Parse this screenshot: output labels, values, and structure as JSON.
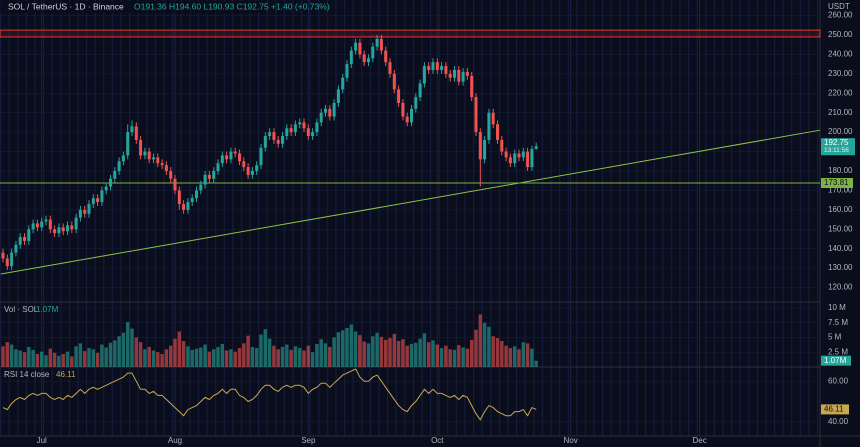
{
  "chart_data": [
    {
      "type": "candlestick",
      "title": "SOL / TetherUS · 1D · Binance",
      "subtitle": "O191.36 H194.60 L190.93 C192.75 +1.40 (+0.73%)",
      "currency": "USDT",
      "countdown": "13:11:56",
      "up_color": "#26a69a",
      "down_color": "#ef5350",
      "xlim": [
        -0.7,
        190
      ],
      "xticks": [
        {
          "value": 9,
          "label": "Jul"
        },
        {
          "value": 40,
          "label": "Aug"
        },
        {
          "value": 71,
          "label": "Sep"
        },
        {
          "value": 101,
          "label": "Oct"
        },
        {
          "value": 132,
          "label": "Nov"
        },
        {
          "value": 162,
          "label": "Dec"
        }
      ],
      "ylim": [
        113.6,
        268
      ],
      "yticks": [
        {
          "value": 120,
          "label": "120.00"
        },
        {
          "value": 130,
          "label": "130.00"
        },
        {
          "value": 140,
          "label": "140.00"
        },
        {
          "value": 150,
          "label": "150.00"
        },
        {
          "value": 160,
          "label": "160.00"
        },
        {
          "value": 170,
          "label": "170.00"
        },
        {
          "value": 180,
          "label": "180.00"
        },
        {
          "value": 190,
          "label": "190.00"
        },
        {
          "value": 200,
          "label": "200.00"
        },
        {
          "value": 210,
          "label": "210.00"
        },
        {
          "value": 220,
          "label": "220.00"
        },
        {
          "value": 230,
          "label": "230.00"
        },
        {
          "value": 240,
          "label": "240.00"
        },
        {
          "value": 250,
          "label": "250.00"
        },
        {
          "value": 260,
          "label": "260.00"
        }
      ],
      "series": {
        "open": [
          138,
          135,
          131,
          138,
          142,
          146,
          144,
          150,
          153,
          151,
          154,
          155,
          150,
          148,
          151,
          149,
          152,
          150,
          156,
          160,
          158,
          163,
          166,
          164,
          170,
          172,
          176,
          180,
          185,
          188,
          200,
          203,
          196,
          188,
          190,
          186,
          187,
          184,
          183,
          180,
          176,
          170,
          163,
          160,
          164,
          166,
          170,
          173,
          178,
          176,
          180,
          184,
          188,
          186,
          190,
          189,
          185,
          182,
          178,
          180,
          183,
          192,
          198,
          200,
          196,
          194,
          198,
          202,
          200,
          204,
          205,
          202,
          198,
          200,
          205,
          210,
          212,
          208,
          215,
          222,
          228,
          235,
          242,
          246,
          240,
          236,
          238,
          244,
          248,
          242,
          236,
          230,
          222,
          215,
          208,
          205,
          212,
          218,
          225,
          234,
          232,
          236,
          232,
          234,
          230,
          228,
          232,
          226,
          231,
          229,
          218,
          200,
          186,
          196,
          210,
          204,
          196,
          190,
          187,
          184,
          189,
          187,
          190,
          182,
          191.36
        ],
        "high": [
          140,
          137,
          140,
          144,
          148,
          148,
          152,
          155,
          155,
          156,
          157,
          157,
          152,
          153,
          153,
          154,
          154,
          158,
          162,
          162,
          165,
          168,
          168,
          172,
          174,
          178,
          182,
          187,
          190,
          204,
          206,
          205,
          198,
          192,
          192,
          189,
          189,
          186,
          185,
          182,
          178,
          172,
          165,
          166,
          168,
          172,
          175,
          180,
          180,
          182,
          186,
          190,
          190,
          192,
          192,
          191,
          187,
          184,
          182,
          185,
          194,
          200,
          202,
          202,
          198,
          200,
          204,
          204,
          206,
          207,
          207,
          204,
          202,
          207,
          212,
          214,
          214,
          217,
          224,
          230,
          237,
          244,
          248,
          248,
          242,
          240,
          246,
          250,
          250,
          244,
          238,
          232,
          224,
          217,
          210,
          214,
          220,
          227,
          236,
          236,
          238,
          238,
          236,
          236,
          232,
          234,
          234,
          233,
          233,
          231,
          220,
          202,
          198,
          212,
          212,
          206,
          198,
          192,
          189,
          191,
          191,
          192,
          192,
          193,
          194.6
        ],
        "low": [
          133,
          129,
          129,
          136,
          140,
          142,
          142,
          148,
          149,
          149,
          152,
          148,
          146,
          146,
          147,
          147,
          148,
          148,
          154,
          156,
          156,
          161,
          162,
          162,
          168,
          170,
          174,
          178,
          183,
          186,
          198,
          194,
          186,
          186,
          184,
          184,
          182,
          181,
          178,
          174,
          168,
          160,
          158,
          158,
          162,
          164,
          168,
          171,
          174,
          174,
          178,
          182,
          184,
          184,
          187,
          183,
          180,
          176,
          176,
          178,
          181,
          190,
          196,
          194,
          192,
          192,
          196,
          198,
          198,
          202,
          200,
          196,
          196,
          198,
          203,
          208,
          206,
          206,
          213,
          220,
          226,
          233,
          240,
          238,
          234,
          234,
          236,
          242,
          240,
          234,
          228,
          220,
          213,
          206,
          203,
          203,
          210,
          216,
          223,
          230,
          230,
          230,
          230,
          228,
          226,
          226,
          224,
          224,
          227,
          216,
          198,
          172,
          184,
          194,
          202,
          194,
          188,
          185,
          182,
          182,
          185,
          185,
          180,
          180,
          190.93
        ],
        "close": [
          135,
          131,
          138,
          142,
          146,
          144,
          150,
          153,
          151,
          154,
          155,
          150,
          148,
          151,
          149,
          152,
          150,
          156,
          160,
          158,
          163,
          166,
          164,
          170,
          172,
          176,
          180,
          185,
          188,
          200,
          203,
          196,
          188,
          190,
          186,
          187,
          184,
          183,
          180,
          176,
          170,
          163,
          160,
          164,
          166,
          170,
          173,
          178,
          176,
          180,
          184,
          188,
          186,
          190,
          189,
          185,
          182,
          178,
          180,
          183,
          192,
          198,
          200,
          196,
          194,
          198,
          202,
          200,
          204,
          205,
          202,
          198,
          200,
          205,
          210,
          212,
          208,
          215,
          222,
          228,
          235,
          242,
          246,
          240,
          236,
          238,
          244,
          248,
          242,
          236,
          230,
          222,
          215,
          208,
          205,
          212,
          218,
          225,
          234,
          232,
          236,
          232,
          234,
          230,
          228,
          232,
          226,
          231,
          229,
          218,
          200,
          186,
          196,
          210,
          204,
          196,
          190,
          187,
          184,
          189,
          187,
          190,
          182,
          191.35,
          192.75
        ]
      },
      "zone": {
        "from": 249,
        "to": 252.5,
        "color": "#e53935"
      },
      "hlines": [
        {
          "value": 173.81,
          "label": "173.81",
          "color": "#7cb342"
        }
      ],
      "trendline": {
        "x": [
          -0.5,
          190
        ],
        "y": [
          127,
          201
        ],
        "color": "#8bc34a"
      }
    },
    {
      "type": "bar",
      "title": "Vol · SOL",
      "last_value_label": "1.07M",
      "ylim": [
        0,
        11
      ],
      "yticks": [
        {
          "value": 2.5,
          "label": "2.5 M"
        },
        {
          "value": 5,
          "label": "5 M"
        },
        {
          "value": 7.5,
          "label": "7.5 M"
        },
        {
          "value": 10,
          "label": "10 M"
        }
      ],
      "values": [
        3.5,
        4.2,
        3.8,
        3.0,
        2.8,
        2.5,
        3.4,
        2.9,
        2.2,
        2.6,
        2.0,
        3.1,
        2.4,
        1.9,
        2.2,
        2.6,
        1.8,
        3.5,
        4.0,
        2.7,
        3.2,
        3.0,
        2.4,
        3.8,
        3.3,
        4.1,
        4.5,
        5.2,
        5.8,
        7.6,
        6.5,
        5.0,
        4.2,
        3.0,
        3.4,
        2.8,
        2.5,
        2.2,
        3.0,
        3.6,
        4.8,
        6.0,
        4.4,
        3.5,
        2.9,
        3.1,
        3.3,
        3.8,
        2.6,
        3.0,
        3.4,
        3.9,
        2.8,
        3.0,
        2.6,
        3.2,
        4.0,
        5.3,
        3.4,
        3.2,
        5.5,
        6.4,
        4.8,
        3.6,
        3.0,
        3.4,
        3.8,
        2.9,
        3.5,
        3.2,
        2.8,
        3.6,
        2.5,
        3.9,
        4.7,
        4.0,
        3.4,
        5.0,
        5.9,
        6.2,
        6.6,
        7.2,
        6.0,
        5.4,
        4.3,
        4.0,
        5.2,
        5.8,
        5.1,
        4.6,
        4.9,
        5.6,
        4.4,
        4.7,
        3.6,
        3.9,
        4.1,
        4.8,
        5.7,
        4.2,
        4.5,
        3.8,
        3.2,
        3.6,
        3.0,
        2.9,
        3.7,
        3.3,
        3.1,
        4.6,
        6.3,
        8.9,
        7.5,
        6.8,
        5.2,
        4.9,
        4.4,
        3.6,
        3.2,
        3.5,
        3.0,
        4.2,
        4.0,
        3.1,
        1.07
      ]
    },
    {
      "type": "line",
      "title": "RSI 14 close",
      "color": "#c9a84c",
      "ylim": [
        33,
        67
      ],
      "yticks": [
        {
          "value": 40,
          "label": "40.00"
        },
        {
          "value": 60,
          "label": "60.00"
        }
      ],
      "values": [
        47,
        46,
        49,
        51,
        52,
        51,
        53,
        54,
        53,
        54,
        54,
        52,
        51,
        52,
        51,
        53,
        52,
        54,
        56,
        54,
        56,
        57,
        56,
        57,
        58,
        59,
        60,
        61,
        62,
        64,
        64,
        60,
        56,
        56,
        54,
        55,
        53,
        53,
        51,
        49,
        47,
        45,
        43,
        46,
        47,
        48,
        50,
        52,
        51,
        53,
        54,
        56,
        54,
        56,
        56,
        53,
        52,
        50,
        51,
        53,
        56,
        58,
        58,
        56,
        55,
        57,
        58,
        57,
        58,
        58,
        57,
        54,
        56,
        57,
        59,
        59,
        57,
        59,
        61,
        63,
        64,
        65,
        66,
        62,
        60,
        60,
        62,
        63,
        60,
        57,
        54,
        51,
        48,
        46,
        45,
        48,
        50,
        53,
        56,
        54,
        56,
        54,
        54,
        53,
        52,
        53,
        51,
        53,
        52,
        48,
        44,
        41,
        45,
        48,
        47,
        45,
        44,
        43,
        43,
        45,
        45,
        46,
        43,
        47,
        46.11
      ]
    }
  ]
}
